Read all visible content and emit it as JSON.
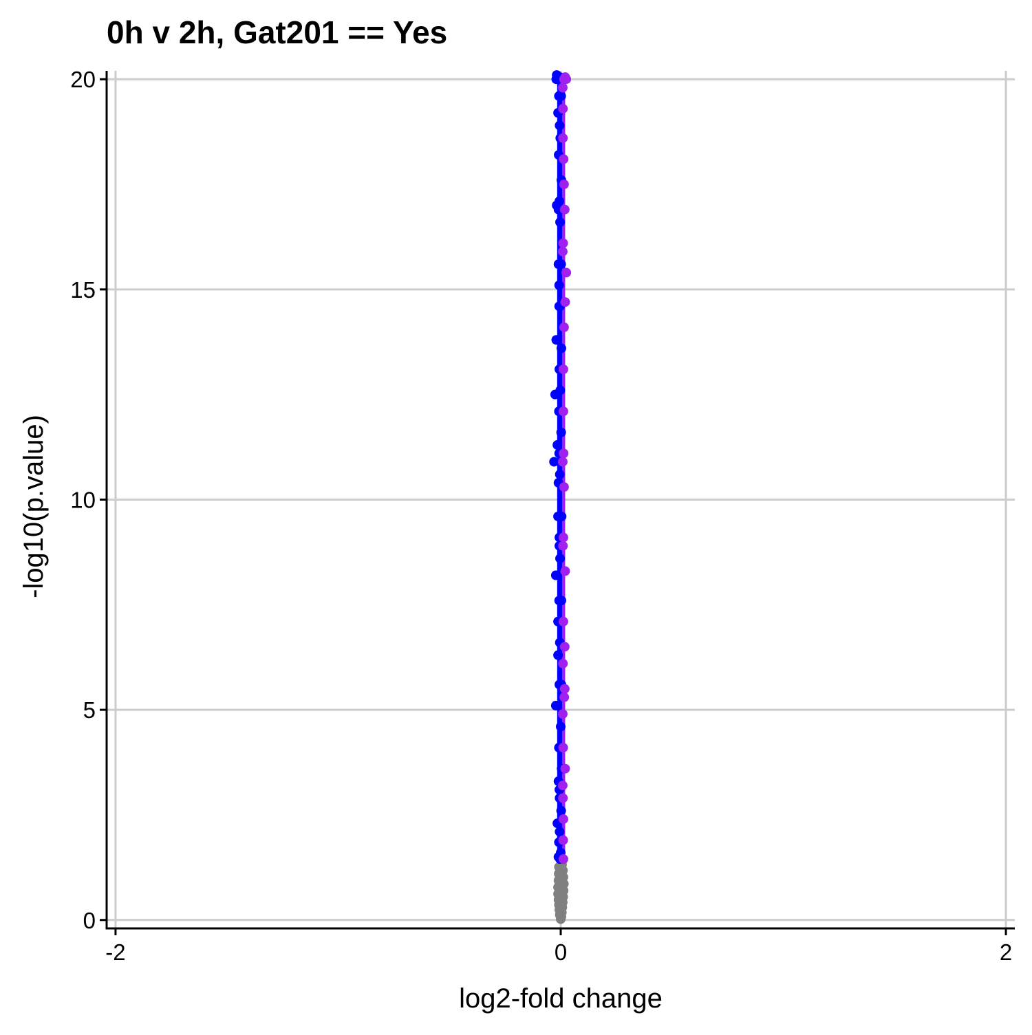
{
  "chart_data": {
    "type": "scatter",
    "title": "0h v 2h, Gat201 == Yes",
    "xlabel": "log2-fold change",
    "ylabel": "-log10(p.value)",
    "xlim": [
      -2.04,
      2.04
    ],
    "ylim": [
      -0.2,
      20.2
    ],
    "xticks": [
      -2,
      0,
      2
    ],
    "xtick_labels": [
      "-2",
      "0",
      "2"
    ],
    "yticks": [
      0,
      5,
      10,
      15,
      20
    ],
    "ytick_labels": [
      "0",
      "5",
      "10",
      "15",
      "20"
    ],
    "grid": true,
    "legend": "none",
    "colors": {
      "down": "#0000ff",
      "up": "#a020f0",
      "not_significant": "#808080",
      "grid": "#cccccc",
      "axis": "#000000"
    },
    "series": [
      {
        "color_key": "not_significant",
        "points": [
          [
            0.0,
            0.02
          ],
          [
            0.003,
            0.08
          ],
          [
            -0.004,
            0.12
          ],
          [
            0.005,
            0.18
          ],
          [
            -0.006,
            0.24
          ],
          [
            0.007,
            0.3
          ],
          [
            -0.008,
            0.36
          ],
          [
            0.009,
            0.42
          ],
          [
            -0.01,
            0.48
          ],
          [
            0.011,
            0.55
          ],
          [
            -0.012,
            0.62
          ],
          [
            0.013,
            0.7
          ],
          [
            -0.012,
            0.78
          ],
          [
            0.014,
            0.86
          ],
          [
            -0.01,
            0.94
          ],
          [
            0.012,
            1.02
          ],
          [
            -0.009,
            1.1
          ],
          [
            0.01,
            1.18
          ],
          [
            -0.008,
            1.26
          ],
          [
            0.006,
            1.32
          ]
        ]
      },
      {
        "color_key": "down",
        "points": [
          [
            -0.025,
            12.5
          ],
          [
            -0.03,
            10.9
          ],
          [
            -0.022,
            8.2
          ],
          [
            -0.022,
            5.1
          ],
          [
            -0.018,
            17.0
          ],
          [
            -0.01,
            16.9
          ],
          [
            -0.02,
            13.8
          ],
          [
            -0.015,
            11.3
          ],
          [
            -0.012,
            9.6
          ],
          [
            -0.012,
            7.1
          ],
          [
            -0.01,
            3.3
          ],
          [
            -0.015,
            2.3
          ],
          [
            -0.01,
            1.5
          ],
          [
            -0.008,
            1.85
          ],
          [
            -0.005,
            2.9
          ],
          [
            -0.008,
            4.1
          ],
          [
            -0.012,
            6.3
          ],
          [
            -0.006,
            8.9
          ],
          [
            -0.01,
            10.4
          ],
          [
            -0.008,
            12.1
          ],
          [
            -0.007,
            14.6
          ],
          [
            -0.01,
            15.6
          ],
          [
            -0.009,
            18.2
          ],
          [
            -0.012,
            19.2
          ],
          [
            -0.008,
            19.6
          ],
          [
            -0.015,
            20.0
          ],
          [
            -0.02,
            20.0
          ],
          [
            -0.018,
            20.1
          ],
          [
            -0.01,
            20.0
          ],
          [
            -0.003,
            20.05
          ],
          [
            -0.003,
            1.45
          ],
          [
            0.0,
            1.6
          ],
          [
            0.002,
            2.6
          ],
          [
            0.004,
            3.6
          ],
          [
            0.0,
            4.6
          ],
          [
            0.003,
            5.6
          ],
          [
            -0.004,
            6.6
          ],
          [
            0.003,
            7.6
          ],
          [
            -0.003,
            8.6
          ],
          [
            0.004,
            9.6
          ],
          [
            -0.004,
            10.6
          ],
          [
            0.002,
            11.6
          ],
          [
            -0.002,
            12.6
          ],
          [
            0.003,
            13.6
          ],
          [
            -0.003,
            14.6
          ],
          [
            0.002,
            15.6
          ],
          [
            -0.003,
            16.6
          ],
          [
            0.003,
            17.6
          ],
          [
            -0.002,
            18.6
          ],
          [
            0.002,
            19.6
          ],
          [
            -0.005,
            2.1
          ],
          [
            -0.006,
            3.1
          ],
          [
            -0.007,
            4.1
          ],
          [
            -0.006,
            5.6
          ],
          [
            -0.007,
            7.6
          ],
          [
            -0.006,
            9.1
          ],
          [
            -0.007,
            11.1
          ],
          [
            -0.006,
            13.1
          ],
          [
            -0.007,
            15.1
          ],
          [
            -0.006,
            17.1
          ],
          [
            -0.005,
            18.9
          ]
        ]
      },
      {
        "color_key": "up",
        "points": [
          [
            0.025,
            20.0
          ],
          [
            0.02,
            20.05
          ],
          [
            0.015,
            20.0
          ],
          [
            0.025,
            15.4
          ],
          [
            0.02,
            14.7
          ],
          [
            0.015,
            10.3
          ],
          [
            0.02,
            8.3
          ],
          [
            0.018,
            6.5
          ],
          [
            0.018,
            5.5
          ],
          [
            0.016,
            5.3
          ],
          [
            0.02,
            3.6
          ],
          [
            0.012,
            2.4
          ],
          [
            0.012,
            1.45
          ],
          [
            0.015,
            17.5
          ],
          [
            0.018,
            16.9
          ],
          [
            0.015,
            14.1
          ],
          [
            0.012,
            12.1
          ],
          [
            0.013,
            11.1
          ],
          [
            0.012,
            9.1
          ],
          [
            0.012,
            7.1
          ],
          [
            0.011,
            4.1
          ],
          [
            0.01,
            2.9
          ],
          [
            0.01,
            18.6
          ],
          [
            0.01,
            19.3
          ],
          [
            0.012,
            13.1
          ],
          [
            0.011,
            16.1
          ],
          [
            0.013,
            18.1
          ],
          [
            0.011,
            1.9
          ],
          [
            0.01,
            6.1
          ],
          [
            0.01,
            8.9
          ],
          [
            0.009,
            10.9
          ],
          [
            0.009,
            15.9
          ],
          [
            0.009,
            19.8
          ],
          [
            0.009,
            3.2
          ],
          [
            0.009,
            4.9
          ]
        ]
      }
    ]
  }
}
